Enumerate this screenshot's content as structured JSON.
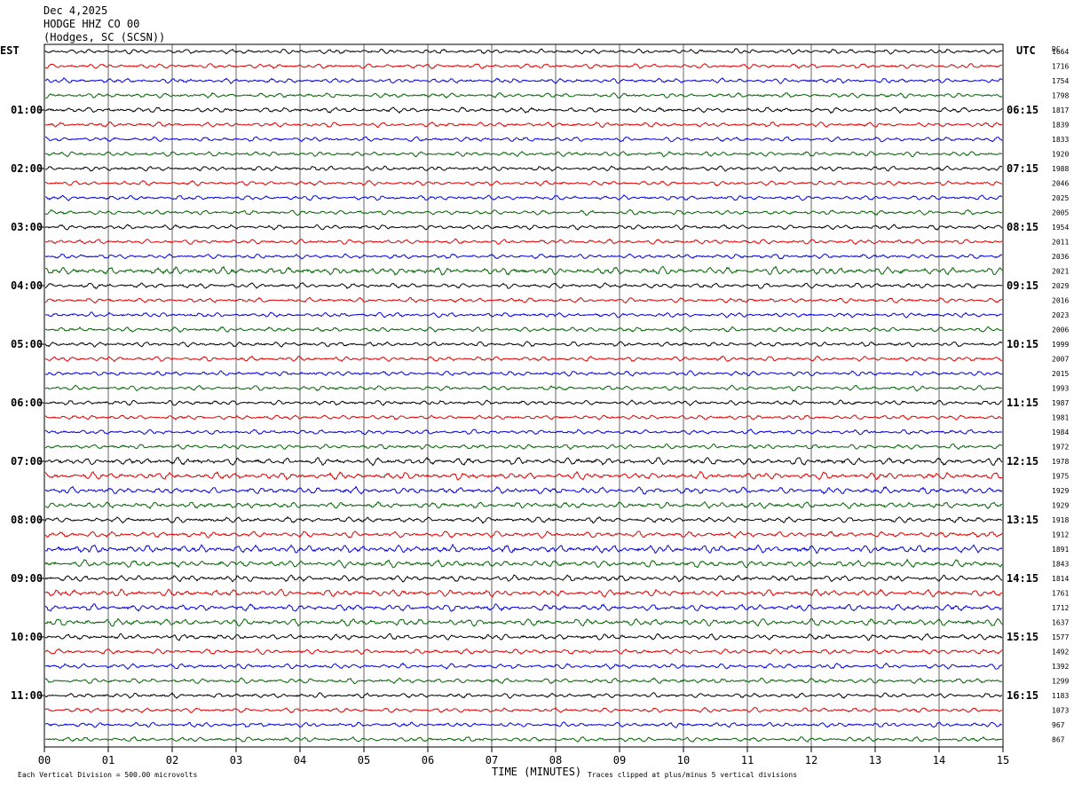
{
  "header": {
    "date": "Dec 4,2025",
    "station": "HODGE HHZ CO 00",
    "location": "(Hodges, SC (SCSN))"
  },
  "chart_data": {
    "type": "line",
    "title": "Dec 4,2025",
    "left_axis_label": "EST",
    "right_axis_label": "UTC",
    "dc_label": "DC",
    "xlabel": "TIME (MINUTES)",
    "xlim": [
      0,
      15
    ],
    "x_ticks": [
      "00",
      "01",
      "02",
      "03",
      "04",
      "05",
      "06",
      "07",
      "08",
      "09",
      "10",
      "11",
      "12",
      "13",
      "14",
      "15"
    ],
    "grid": true,
    "trace_colors": [
      "#000000",
      "#e00000",
      "#0000e0",
      "#006400"
    ],
    "left_time_labels": [
      "01:00",
      "02:00",
      "03:00",
      "04:00",
      "05:00",
      "06:00",
      "07:00",
      "08:00",
      "09:00",
      "10:00",
      "11:00"
    ],
    "right_time_labels": [
      "06:15",
      "07:15",
      "08:15",
      "09:15",
      "10:15",
      "11:15",
      "12:15",
      "13:15",
      "14:15",
      "15:15",
      "16:15"
    ],
    "dc_offsets": [
      1664,
      1716,
      1754,
      1798,
      1817,
      1839,
      1833,
      1920,
      1988,
      2046,
      2025,
      2005,
      1954,
      2011,
      2036,
      2021,
      2029,
      2016,
      2023,
      2006,
      1999,
      2007,
      2015,
      1993,
      1987,
      1981,
      1984,
      1972,
      1978,
      1975,
      1929,
      1929,
      1918,
      1912,
      1891,
      1843,
      1814,
      1761,
      1712,
      1637,
      1577,
      1492,
      1392,
      1299,
      1183,
      1073,
      967,
      867
    ],
    "trace_activity": [
      1,
      1,
      1,
      1,
      1.1,
      1,
      1,
      1,
      1,
      1,
      1,
      1,
      1,
      1,
      1,
      1.6,
      1.1,
      1,
      1,
      1,
      1,
      1,
      1,
      1,
      1,
      1,
      1,
      1,
      1.5,
      1.5,
      1.4,
      1.3,
      1.2,
      1.3,
      1.6,
      1.5,
      1.3,
      1.4,
      1.4,
      1.5,
      1.2,
      1.1,
      1.1,
      1.1,
      1,
      1,
      1,
      1
    ],
    "footer_left": "Each Vertical Division =  500.00 microvolts",
    "footer_right": "Traces clipped at plus/minus 5 vertical divisions"
  }
}
